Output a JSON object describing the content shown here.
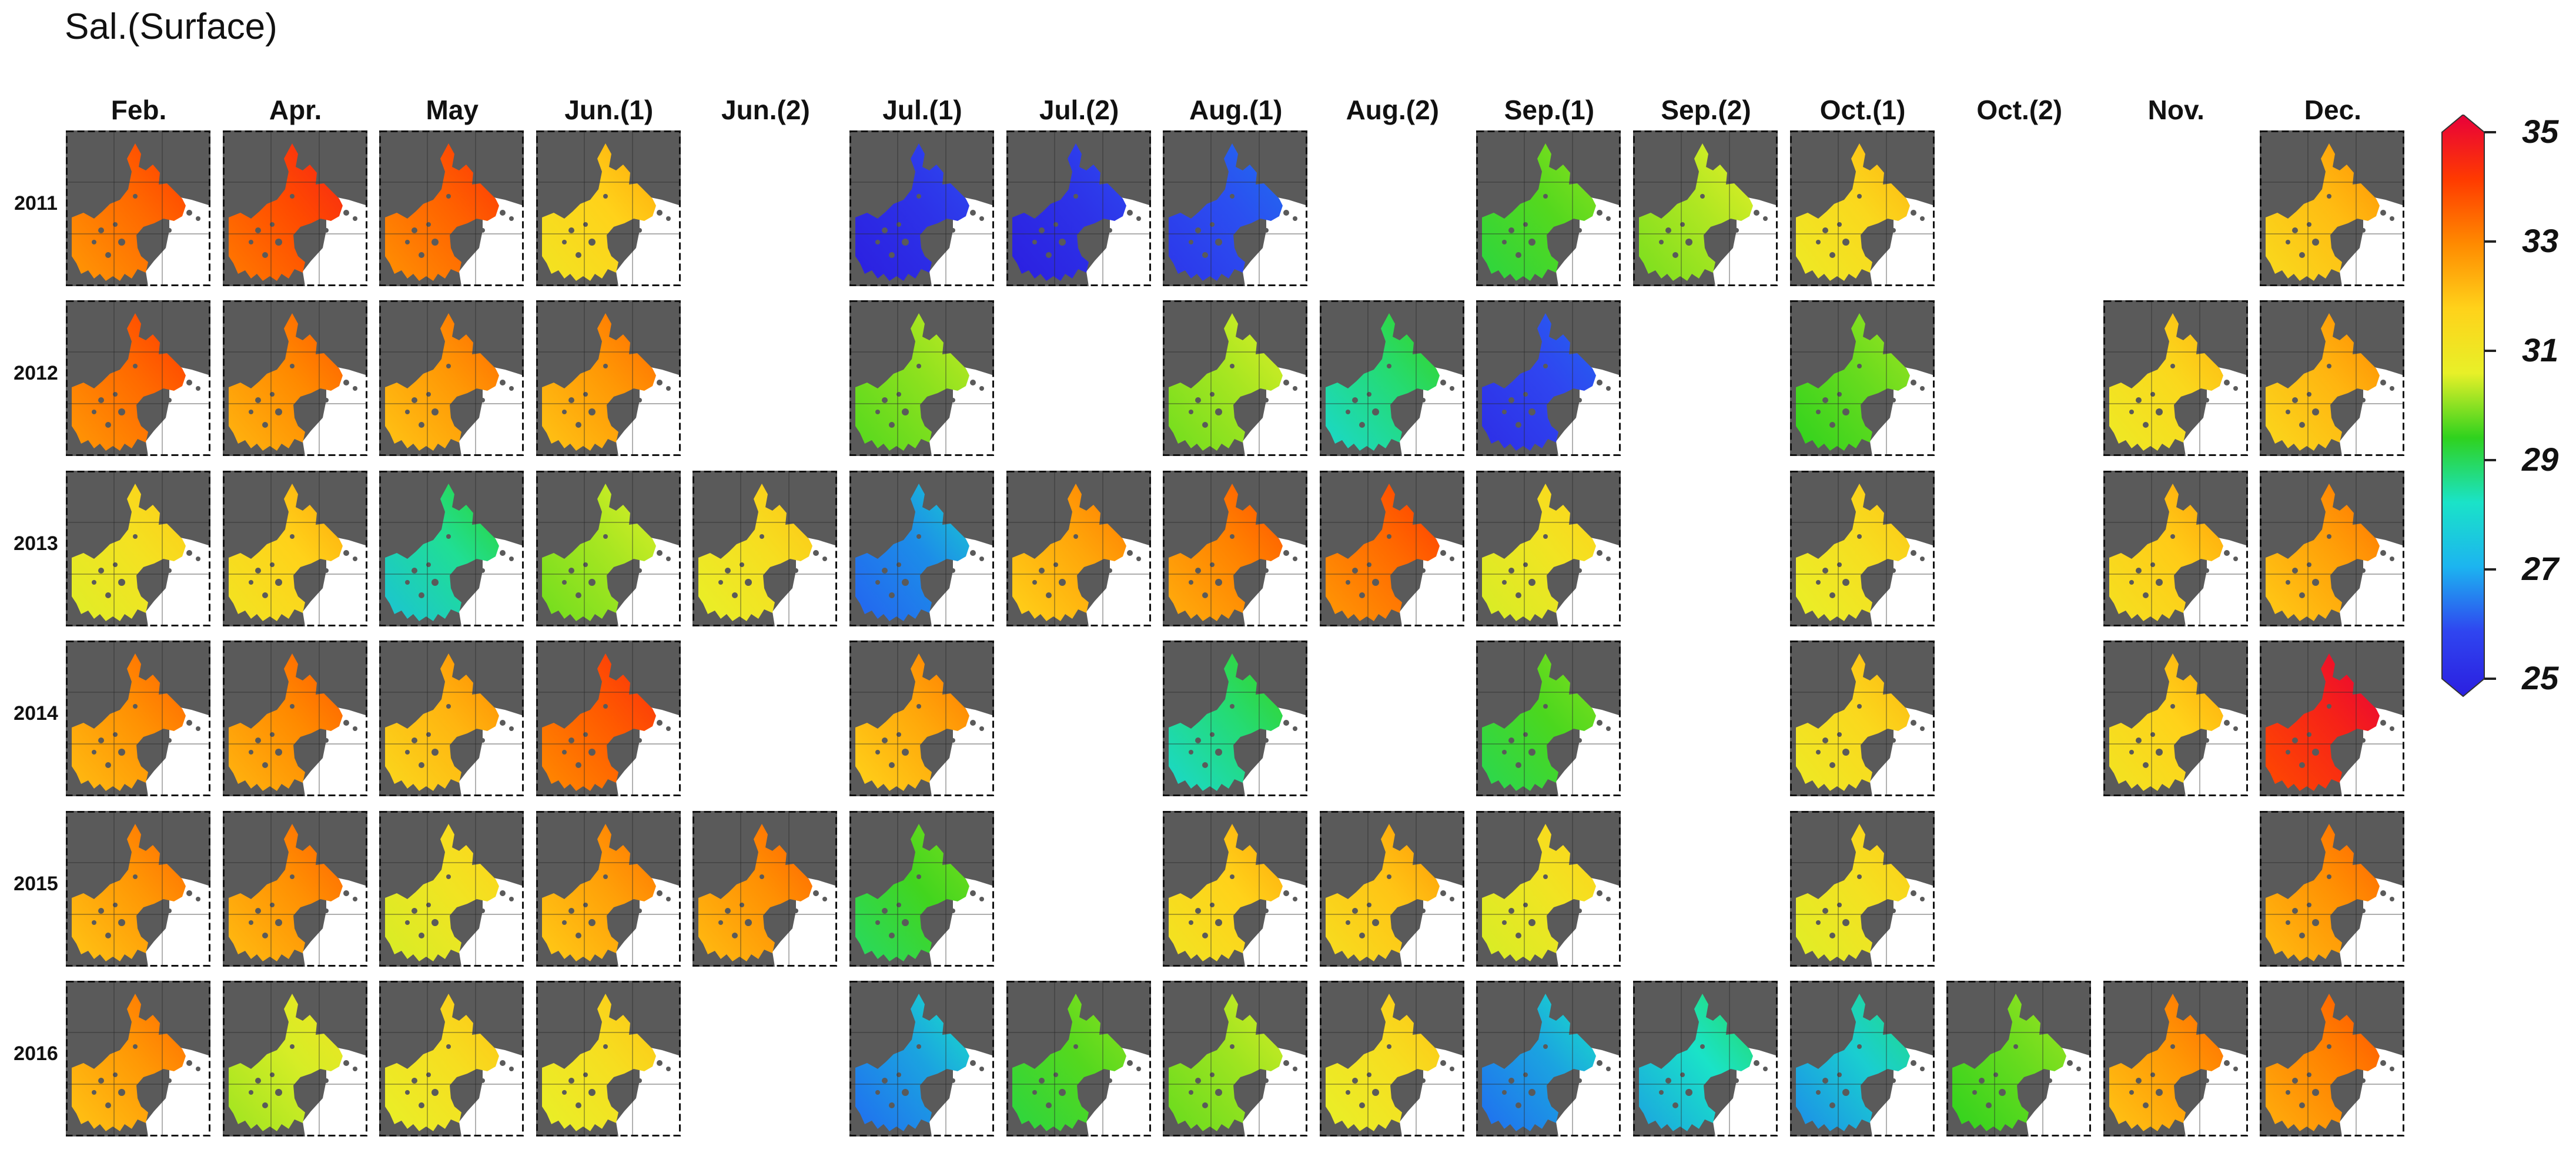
{
  "title": "Sal.(Surface)",
  "chart_data": {
    "type": "heatmap",
    "title": "Sal.(Surface)",
    "columns": [
      "Feb.",
      "Apr.",
      "May",
      "Jun.(1)",
      "Jun.(2)",
      "Jul.(1)",
      "Jul.(2)",
      "Aug.(1)",
      "Aug.(2)",
      "Sep.(1)",
      "Sep.(2)",
      "Oct.(1)",
      "Oct.(2)",
      "Nov.",
      "Dec."
    ],
    "rows": [
      "2011",
      "2012",
      "2013",
      "2014",
      "2015",
      "2016"
    ],
    "colorbar": {
      "ticks": [
        "35",
        "33",
        "31",
        "29",
        "27",
        "25"
      ],
      "range": [
        25,
        35
      ],
      "colors": [
        "#e8003a",
        "#ff3a00",
        "#ff8a00",
        "#ffd21a",
        "#e8f028",
        "#2fd21e",
        "#1ae3c8",
        "#1cb4f0",
        "#2f45f0",
        "#2b1fe0"
      ]
    },
    "salinity": [
      [
        33.4,
        33.8,
        33.5,
        32.0,
        null,
        25.5,
        25.5,
        26.2,
        null,
        29.4,
        30.4,
        31.8,
        null,
        null,
        32.3
      ],
      [
        33.4,
        33.0,
        32.8,
        32.8,
        null,
        30.0,
        null,
        30.3,
        28.5,
        26.0,
        null,
        29.6,
        null,
        31.8,
        32.4
      ],
      [
        31.5,
        32.0,
        28.3,
        30.3,
        31.6,
        27.2,
        32.6,
        33.1,
        33.4,
        31.4,
        null,
        31.6,
        null,
        32.1,
        32.7
      ],
      [
        32.9,
        33.0,
        32.4,
        33.6,
        null,
        32.6,
        null,
        28.5,
        null,
        29.3,
        null,
        31.8,
        null,
        32.0,
        34.4
      ],
      [
        32.8,
        32.9,
        31.4,
        32.7,
        32.9,
        29.2,
        null,
        32.0,
        32.2,
        31.4,
        null,
        31.5,
        null,
        null,
        32.9
      ],
      [
        32.8,
        30.8,
        31.6,
        31.6,
        null,
        27.4,
        29.4,
        30.2,
        31.6,
        27.4,
        28.0,
        27.8,
        29.6,
        32.8,
        33.1
      ]
    ]
  }
}
